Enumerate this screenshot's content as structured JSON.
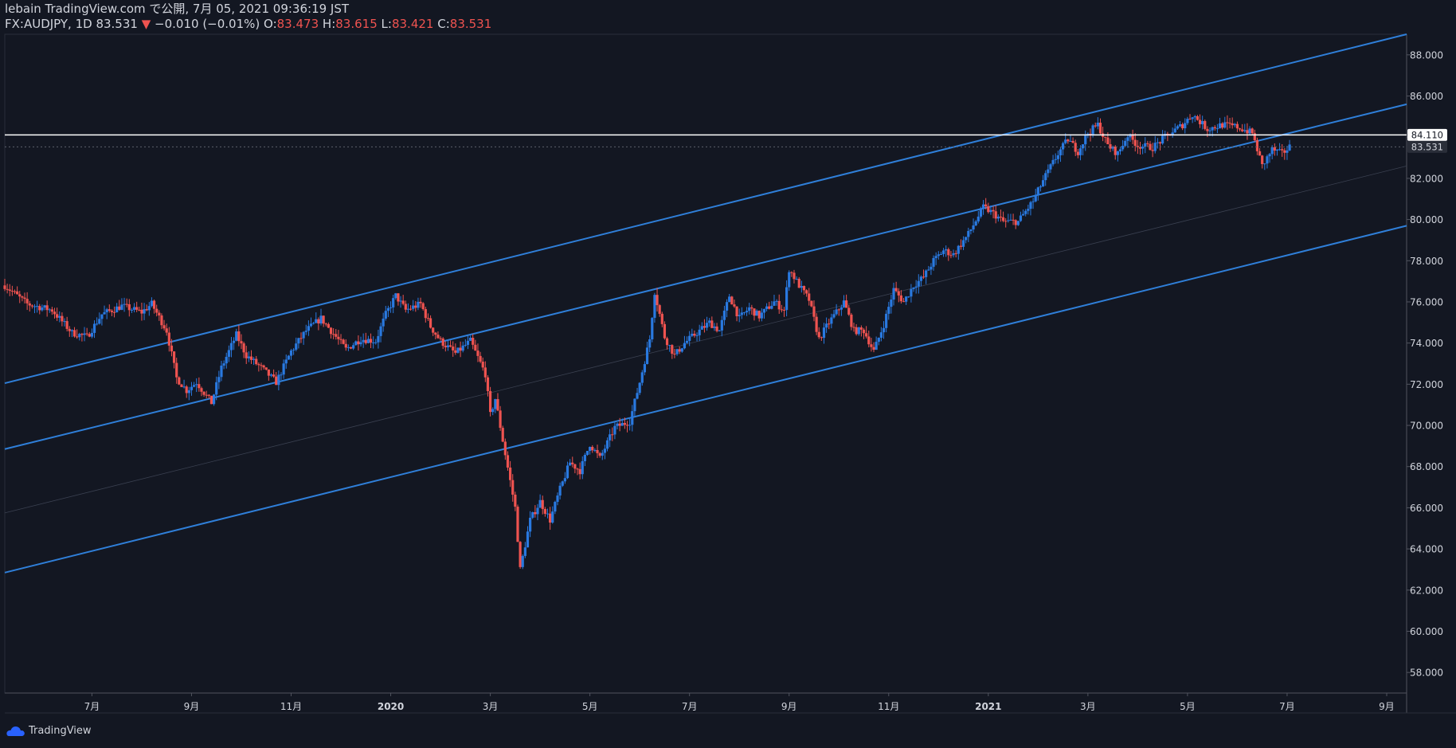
{
  "header": {
    "published_line": "lebain TradingView.com で公開, 7月 05, 2021 09:36:19 JST",
    "symbol_text": "FX:AUDJPY, 1D 83.531",
    "change_arrow": "▼",
    "change_text": "−0.010 (−0.01%)",
    "open_label": "O:",
    "open_value": "83.473",
    "high_label": "H:",
    "high_value": "83.615",
    "low_label": "L:",
    "low_value": "83.421",
    "close_label": "C:",
    "close_value": "83.531"
  },
  "footer": {
    "brand": "TradingView"
  },
  "colors": {
    "background": "#131722",
    "up": "#2962ff",
    "up_line": "#2979e0",
    "down": "#ef5350",
    "channel": "#2f7fd9",
    "hline": "#ffffff",
    "axis_text": "#d1d4dc",
    "grid": "#1e2330"
  },
  "chart_data": {
    "type": "candlestick",
    "symbol": "FX:AUDJPY",
    "interval": "1D",
    "ylim": [
      57,
      89
    ],
    "yticks": [
      58,
      60,
      62,
      64,
      66,
      68,
      70,
      72,
      74,
      76,
      78,
      80,
      82,
      84,
      86,
      88
    ],
    "ytick_labels": [
      "58.000",
      "60.000",
      "62.000",
      "64.000",
      "66.000",
      "68.000",
      "70.000",
      "72.000",
      "74.000",
      "76.000",
      "78.000",
      "80.000",
      "82.000",
      "84.000",
      "86.000",
      "88.000"
    ],
    "x_range_months": [
      0.25,
      28.4
    ],
    "x_origin": "2019-05",
    "xticks": [
      {
        "m": 2,
        "label": "7月",
        "bold": false
      },
      {
        "m": 4,
        "label": "9月",
        "bold": false
      },
      {
        "m": 6,
        "label": "11月",
        "bold": false
      },
      {
        "m": 8,
        "label": "2020",
        "bold": true
      },
      {
        "m": 10,
        "label": "3月",
        "bold": false
      },
      {
        "m": 12,
        "label": "5月",
        "bold": false
      },
      {
        "m": 14,
        "label": "7月",
        "bold": false
      },
      {
        "m": 16,
        "label": "9月",
        "bold": false
      },
      {
        "m": 18,
        "label": "11月",
        "bold": false
      },
      {
        "m": 20,
        "label": "2021",
        "bold": true
      },
      {
        "m": 22,
        "label": "3月",
        "bold": false
      },
      {
        "m": 24,
        "label": "5月",
        "bold": false
      },
      {
        "m": 26,
        "label": "7月",
        "bold": false
      },
      {
        "m": 28,
        "label": "9月",
        "bold": false
      }
    ],
    "price_path": [
      [
        0.25,
        76.8
      ],
      [
        0.7,
        75.9
      ],
      [
        1.2,
        75.6
      ],
      [
        1.6,
        74.5
      ],
      [
        1.9,
        74.3
      ],
      [
        2.2,
        75.4
      ],
      [
        2.6,
        75.8
      ],
      [
        3.0,
        75.5
      ],
      [
        3.2,
        75.9
      ],
      [
        3.5,
        74.6
      ],
      [
        3.7,
        72.3
      ],
      [
        3.9,
        71.7
      ],
      [
        4.1,
        72.1
      ],
      [
        4.4,
        71.1
      ],
      [
        4.6,
        72.8
      ],
      [
        4.9,
        74.4
      ],
      [
        5.1,
        73.4
      ],
      [
        5.4,
        72.8
      ],
      [
        5.7,
        72.1
      ],
      [
        6.0,
        73.6
      ],
      [
        6.3,
        74.6
      ],
      [
        6.6,
        75.2
      ],
      [
        6.8,
        74.6
      ],
      [
        7.1,
        73.7
      ],
      [
        7.4,
        74.2
      ],
      [
        7.7,
        74.1
      ],
      [
        7.9,
        75.4
      ],
      [
        8.1,
        76.3
      ],
      [
        8.3,
        75.6
      ],
      [
        8.6,
        75.9
      ],
      [
        8.8,
        74.8
      ],
      [
        9.0,
        74.1
      ],
      [
        9.3,
        73.5
      ],
      [
        9.6,
        74.1
      ],
      [
        9.9,
        72.5
      ],
      [
        10.0,
        70.5
      ],
      [
        10.1,
        71.3
      ],
      [
        10.3,
        68.6
      ],
      [
        10.5,
        66.0
      ],
      [
        10.6,
        63.0
      ],
      [
        10.8,
        65.4
      ],
      [
        11.0,
        66.3
      ],
      [
        11.2,
        65.4
      ],
      [
        11.4,
        66.9
      ],
      [
        11.6,
        68.2
      ],
      [
        11.8,
        67.8
      ],
      [
        12.0,
        69.1
      ],
      [
        12.2,
        68.4
      ],
      [
        12.5,
        69.9
      ],
      [
        12.8,
        70.2
      ],
      [
        13.0,
        72.1
      ],
      [
        13.2,
        74.2
      ],
      [
        13.3,
        76.5
      ],
      [
        13.5,
        74.3
      ],
      [
        13.7,
        73.4
      ],
      [
        13.9,
        74.0
      ],
      [
        14.1,
        74.4
      ],
      [
        14.4,
        75.0
      ],
      [
        14.6,
        74.6
      ],
      [
        14.8,
        76.3
      ],
      [
        15.0,
        75.2
      ],
      [
        15.2,
        75.7
      ],
      [
        15.4,
        75.3
      ],
      [
        15.7,
        76.0
      ],
      [
        15.9,
        75.6
      ],
      [
        16.0,
        77.6
      ],
      [
        16.2,
        76.8
      ],
      [
        16.4,
        76.1
      ],
      [
        16.6,
        74.2
      ],
      [
        16.8,
        75.0
      ],
      [
        17.1,
        76.0
      ],
      [
        17.3,
        74.6
      ],
      [
        17.5,
        74.6
      ],
      [
        17.7,
        73.6
      ],
      [
        17.9,
        74.9
      ],
      [
        18.1,
        76.6
      ],
      [
        18.3,
        76.0
      ],
      [
        18.5,
        76.8
      ],
      [
        18.7,
        77.2
      ],
      [
        18.9,
        78.0
      ],
      [
        19.1,
        78.5
      ],
      [
        19.3,
        78.3
      ],
      [
        19.6,
        79.3
      ],
      [
        19.9,
        80.6
      ],
      [
        20.1,
        80.3
      ],
      [
        20.3,
        79.9
      ],
      [
        20.6,
        79.9
      ],
      [
        20.9,
        80.9
      ],
      [
        21.1,
        81.9
      ],
      [
        21.4,
        83.2
      ],
      [
        21.6,
        83.9
      ],
      [
        21.8,
        83.3
      ],
      [
        22.0,
        84.2
      ],
      [
        22.2,
        84.6
      ],
      [
        22.4,
        83.6
      ],
      [
        22.6,
        83.2
      ],
      [
        22.8,
        84.1
      ],
      [
        23.0,
        83.6
      ],
      [
        23.3,
        83.5
      ],
      [
        23.6,
        84.1
      ],
      [
        23.9,
        84.6
      ],
      [
        24.1,
        85.1
      ],
      [
        24.4,
        84.4
      ],
      [
        24.7,
        84.6
      ],
      [
        25.0,
        84.5
      ],
      [
        25.3,
        84.2
      ],
      [
        25.5,
        82.6
      ],
      [
        25.7,
        83.4
      ],
      [
        25.9,
        83.2
      ],
      [
        26.05,
        83.53
      ]
    ],
    "channel_lines": [
      {
        "name": "upper",
        "p1": [
          0,
          71.9
        ],
        "p2": [
          28.4,
          89.0
        ],
        "style": "solid"
      },
      {
        "name": "middle",
        "p1": [
          0,
          68.7
        ],
        "p2": [
          28.4,
          85.6
        ],
        "style": "solid"
      },
      {
        "name": "median",
        "p1": [
          0,
          65.6
        ],
        "p2": [
          28.4,
          82.6
        ],
        "style": "faint"
      },
      {
        "name": "lower",
        "p1": [
          0,
          62.7
        ],
        "p2": [
          28.4,
          79.7
        ],
        "style": "solid"
      }
    ],
    "horizontal_line": {
      "value": 84.11,
      "label": "84.110"
    },
    "last_price": {
      "value": 83.531,
      "label": "83.531"
    }
  }
}
